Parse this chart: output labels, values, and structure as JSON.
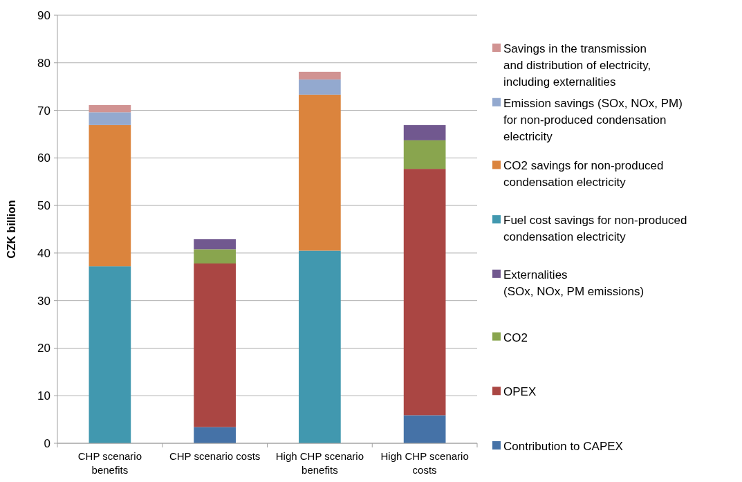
{
  "chart_data": {
    "type": "bar",
    "stacked": true,
    "ylabel": "CZK billion",
    "categories": [
      "CHP scenario benefits",
      "CHP scenario costs",
      "High CHP scenario benefits",
      "High CHP scenario costs"
    ],
    "series": [
      {
        "name": "Contribution to CAPEX",
        "color": "#4572a7",
        "values": [
          null,
          3.4,
          null,
          5.9
        ]
      },
      {
        "name": "OPEX",
        "color": "#aa4643",
        "values": [
          null,
          34.4,
          null,
          51.8
        ]
      },
      {
        "name": "CO2",
        "color": "#89a54e",
        "values": [
          null,
          3.0,
          null,
          6.0
        ]
      },
      {
        "name": "Externalities\n(SOx, NOx, PM emissions)",
        "color": "#71588f",
        "values": [
          null,
          2.1,
          null,
          3.2
        ]
      },
      {
        "name": "Fuel cost savings for non-produced\ncondensation electricity",
        "color": "#4198af",
        "values": [
          37.2,
          null,
          40.5,
          null
        ]
      },
      {
        "name": "CO2 savings for non-produced\ncondensation electricity",
        "color": "#db843d",
        "values": [
          29.7,
          null,
          32.8,
          null
        ]
      },
      {
        "name": "Emission savings (SOx, NOx, PM)\nfor non-produced condensation\nelectricity",
        "color": "#93a9cf",
        "values": [
          2.7,
          null,
          3.2,
          null
        ]
      },
      {
        "name": "Savings in the transmission\nand distribution of electricity,\nincluding externalities",
        "color": "#d19392",
        "values": [
          1.5,
          null,
          1.6,
          null
        ]
      }
    ],
    "ylim": [
      0,
      90
    ],
    "yticks": [
      0,
      10,
      20,
      30,
      40,
      50,
      60,
      70,
      80,
      90
    ],
    "grid": "y",
    "legend": "right"
  }
}
